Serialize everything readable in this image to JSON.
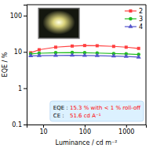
{
  "chart_data": {
    "type": "line",
    "x": [
      5,
      8,
      20,
      50,
      100,
      200,
      500,
      1000,
      2000
    ],
    "series": [
      {
        "name": "2",
        "color": "#ff4040",
        "marker": "square",
        "values": [
          9.5,
          11.5,
          13.5,
          14.5,
          15.0,
          14.8,
          14.2,
          13.5,
          12.5
        ]
      },
      {
        "name": "3",
        "color": "#22bb22",
        "marker": "circle",
        "values": [
          8.8,
          9.2,
          9.5,
          9.6,
          9.5,
          9.3,
          9.0,
          8.8,
          8.5
        ]
      },
      {
        "name": "4",
        "color": "#5555cc",
        "marker": "triangle",
        "values": [
          7.8,
          7.9,
          8.0,
          8.1,
          8.0,
          7.9,
          7.7,
          7.5,
          7.2
        ]
      }
    ],
    "xlabel": "Luminance / cd m⁻²",
    "ylabel": "EQE / %",
    "xlim": [
      4,
      3000
    ],
    "ylim": [
      0.1,
      200
    ],
    "xticks": [
      10,
      100,
      1000
    ],
    "yticks": [
      0.1,
      1,
      10,
      100
    ],
    "log": true,
    "grid": false,
    "legend": "upper right",
    "annotations": {
      "color": "#d8f0ff",
      "lines": [
        {
          "label": "EQE : ",
          "text": "15.3 % with < 1 % roll-off",
          "color": "red"
        },
        {
          "label": "CE :  ",
          "text": "51.6 cd A⁻¹",
          "color": "red"
        }
      ]
    }
  }
}
